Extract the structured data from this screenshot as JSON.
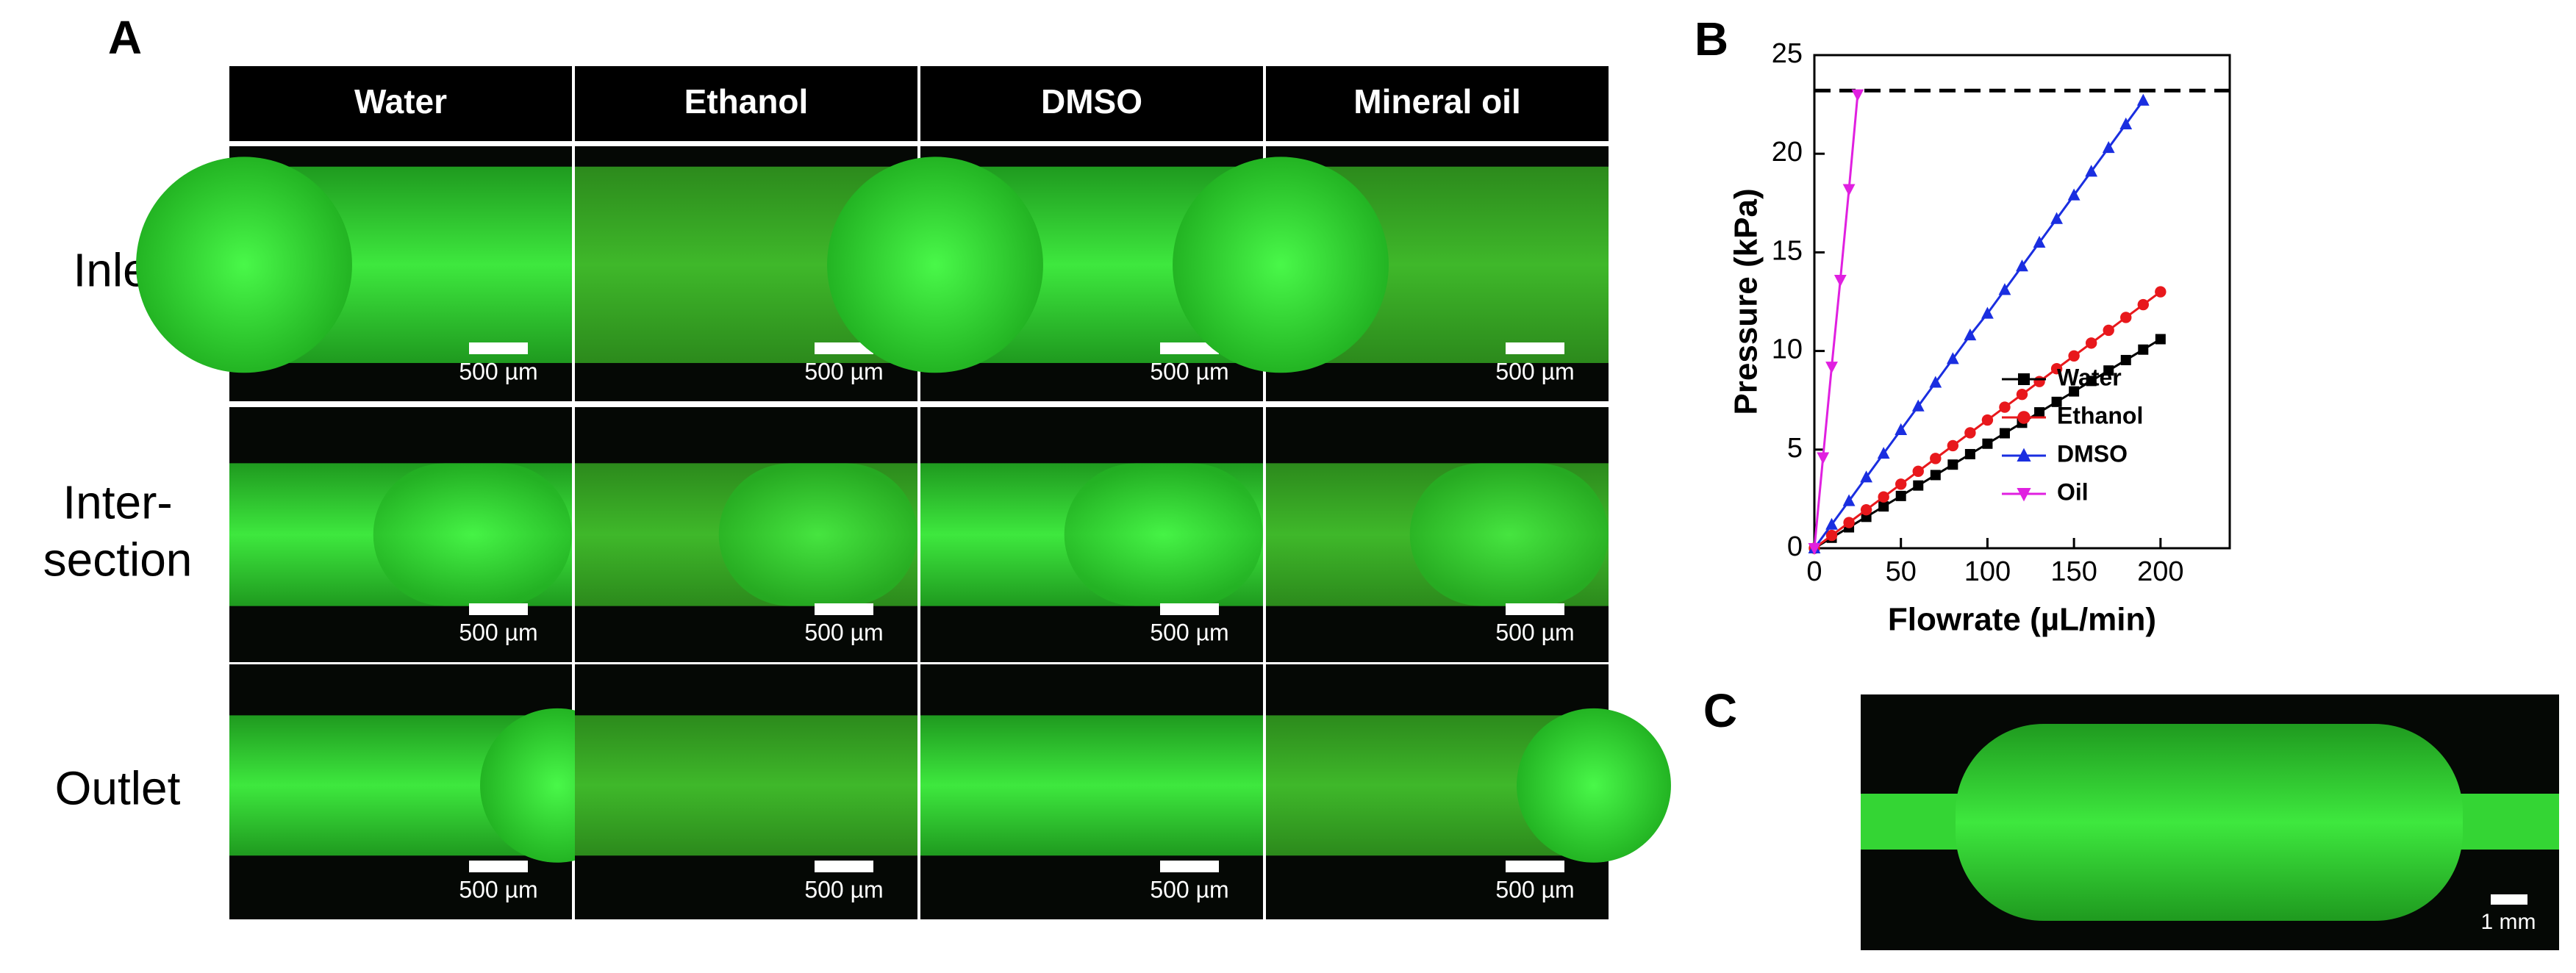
{
  "panel_a": {
    "label": "A",
    "columns": [
      "Water",
      "Ethanol",
      "DMSO",
      "Mineral oil"
    ],
    "rows": [
      [
        "Inlet"
      ],
      [
        "Inter-",
        "section"
      ],
      [
        "Outlet"
      ]
    ],
    "scale_bars": [
      [
        "500 µm",
        "500 µm",
        "500 µm",
        "500 µm"
      ],
      [
        "500 µm",
        "500 µm",
        "500 µm",
        "500 µm"
      ],
      [
        "500 µm",
        "500 µm",
        "500 µm",
        "500 µm"
      ]
    ]
  },
  "panel_b": {
    "label": "B"
  },
  "panel_c": {
    "label": "C",
    "scale_bar": "1 mm"
  },
  "chart_data": {
    "type": "line",
    "x_label": "Flowrate (µL/min)",
    "y_label": "Pressure (kPa)",
    "xlim": [
      0,
      240
    ],
    "ylim": [
      0,
      25
    ],
    "xticks": [
      0,
      50,
      100,
      150,
      200
    ],
    "yticks": [
      0,
      5,
      10,
      15,
      20,
      25
    ],
    "limit_line": 23.2,
    "legend": "lower right",
    "series": [
      {
        "name": "Water",
        "color": "#000000",
        "marker": "square",
        "x": [
          0,
          10,
          20,
          30,
          40,
          50,
          60,
          70,
          80,
          90,
          100,
          110,
          120,
          130,
          140,
          150,
          160,
          170,
          180,
          190,
          200
        ],
        "values": [
          0,
          0.53,
          1.06,
          1.59,
          2.12,
          2.65,
          3.18,
          3.71,
          4.24,
          4.77,
          5.3,
          5.83,
          6.36,
          6.89,
          7.42,
          7.95,
          8.48,
          9.01,
          9.54,
          10.07,
          10.6
        ]
      },
      {
        "name": "Ethanol",
        "color": "#e8181c",
        "marker": "circle",
        "x": [
          0,
          10,
          20,
          30,
          40,
          50,
          60,
          70,
          80,
          90,
          100,
          110,
          120,
          130,
          140,
          150,
          160,
          170,
          180,
          190,
          200
        ],
        "values": [
          0,
          0.65,
          1.3,
          1.95,
          2.6,
          3.25,
          3.9,
          4.55,
          5.2,
          5.85,
          6.5,
          7.15,
          7.8,
          8.45,
          9.1,
          9.75,
          10.4,
          11.05,
          11.7,
          12.35,
          13.0
        ]
      },
      {
        "name": "DMSO",
        "color": "#1a2ee0",
        "marker": "triangle-up",
        "x": [
          0,
          10,
          20,
          30,
          40,
          50,
          60,
          70,
          80,
          90,
          100,
          110,
          120,
          130,
          140,
          150,
          160,
          170,
          180,
          190
        ],
        "values": [
          0,
          1.2,
          2.4,
          3.6,
          4.8,
          6.0,
          7.2,
          8.4,
          9.6,
          10.8,
          11.9,
          13.1,
          14.3,
          15.5,
          16.7,
          17.9,
          19.1,
          20.3,
          21.5,
          22.7
        ]
      },
      {
        "name": "Oil",
        "color": "#e020e0",
        "marker": "triangle-down",
        "x": [
          0,
          5,
          10,
          15,
          20,
          25
        ],
        "values": [
          0,
          4.6,
          9.2,
          13.6,
          18.2,
          23.0
        ]
      }
    ]
  }
}
